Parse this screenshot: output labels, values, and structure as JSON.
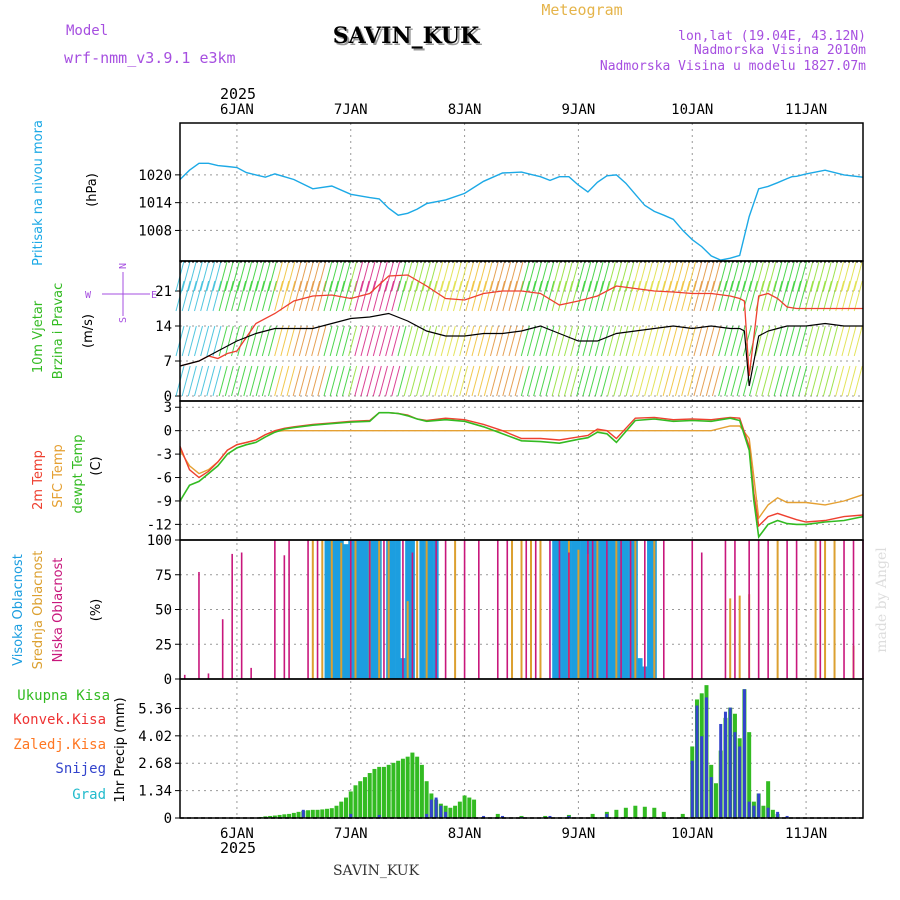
{
  "header": {
    "model_label": "Model",
    "model_name": "wrf-nmm_v3.9.1 e3km",
    "station": "SAVIN_KUK",
    "product": "Meteogram",
    "lonlat": "lon,lat (19.04E, 43.12N)",
    "elevation": "Nadmorska Visina 2010m",
    "model_elevation": "Nadmorska Visina u modelu 1827.07m"
  },
  "footer": {
    "station": "SAVIN_KUK",
    "watermark": "made by Angel"
  },
  "colors": {
    "pressure": "#1ca9e6",
    "temp": "#ee4030",
    "sfc_temp": "#e5a032",
    "dewpt": "#33bb22",
    "cloud_high": "#1c9ee0",
    "cloud_mid": "#dca030",
    "cloud_low": "#c8177c",
    "precip_total": "#33bb22",
    "precip_conv": "#ee3333",
    "precip_frz": "#ff7722",
    "precip_snow": "#3344cc",
    "precip_hail": "#22bbcc",
    "grid": "#999999"
  },
  "chart_data": [
    {
      "id": "dates",
      "type": "table",
      "year": "2025",
      "top_labels": [
        "6JAN",
        "7JAN",
        "8JAN",
        "9JAN",
        "10JAN",
        "11JAN"
      ],
      "bottom_labels": [
        "6JAN",
        "7JAN",
        "8JAN",
        "9JAN",
        "10JAN",
        "11JAN"
      ],
      "x_start_hour": -12,
      "x_end_hour": 132
    },
    {
      "id": "pressure",
      "type": "line",
      "title": "Pritisak na nivou mora",
      "ylabel": "(hPa)",
      "yticks": [
        "1020",
        "1014",
        "1008"
      ],
      "ytick_values": [
        1020,
        1014,
        1008
      ],
      "ylim": [
        1001.4,
        1031.2
      ],
      "x": [
        -12,
        -10,
        -8,
        -6,
        -4,
        -2,
        0,
        2,
        4,
        6,
        8,
        12,
        16,
        20,
        24,
        28,
        30,
        32,
        34,
        36,
        38,
        40,
        44,
        48,
        52,
        56,
        58,
        60,
        62,
        64,
        66,
        68,
        70,
        72,
        74,
        76,
        78,
        80,
        82,
        84,
        86,
        88,
        90,
        92,
        94,
        96,
        98,
        100,
        102,
        104,
        106,
        108,
        110,
        112,
        114,
        116,
        117,
        118,
        120,
        124,
        128,
        132
      ],
      "values": [
        1019.0,
        1021.0,
        1022.5,
        1022.5,
        1022.0,
        1021.8,
        1021.6,
        1020.5,
        1020.0,
        1019.5,
        1020.2,
        1019.0,
        1017.0,
        1017.6,
        1015.8,
        1015.1,
        1014.8,
        1012.8,
        1011.3,
        1011.7,
        1012.6,
        1013.8,
        1014.6,
        1016.0,
        1018.6,
        1020.4,
        1020.5,
        1020.6,
        1020.1,
        1019.6,
        1018.8,
        1019.6,
        1019.6,
        1017.8,
        1016.3,
        1018.4,
        1019.8,
        1020.0,
        1018.2,
        1015.8,
        1013.4,
        1012.1,
        1011.3,
        1010.4,
        1008.0,
        1006.0,
        1004.5,
        1002.5,
        1001.6,
        1002.0,
        1002.6,
        1011.0,
        1017.0,
        1017.5,
        1018.3,
        1019.2,
        1019.6,
        1019.7,
        1020.2,
        1021.0,
        1020.0,
        1019.5
      ]
    },
    {
      "id": "wind",
      "type": "line",
      "title1": "10m Vjetar",
      "title2": "Brzina i Pravac",
      "ylabel": "(m/s)",
      "compass": "N",
      "compass_w": "W",
      "compass_e": "E",
      "compass_s": "S",
      "yticks": [
        "21",
        "14",
        "7",
        "0"
      ],
      "ytick_values": [
        21,
        14,
        7,
        0
      ],
      "ylim": [
        -1,
        27
      ],
      "x": [
        -12,
        -10,
        -8,
        -6,
        -4,
        -2,
        0,
        4,
        8,
        12,
        16,
        20,
        24,
        28,
        32,
        36,
        40,
        44,
        48,
        52,
        56,
        60,
        64,
        68,
        72,
        76,
        80,
        84,
        88,
        92,
        96,
        100,
        104,
        106,
        107,
        108,
        110,
        112,
        114,
        116,
        118,
        120,
        124,
        128,
        132
      ],
      "speed": [
        6,
        6.5,
        7,
        8,
        9,
        10,
        11,
        12.5,
        13.5,
        13.5,
        13.5,
        14.5,
        15.5,
        15.8,
        16.5,
        15,
        13,
        12,
        12,
        12.5,
        12.5,
        13,
        14,
        12.5,
        11,
        11,
        12.5,
        13,
        13.5,
        14,
        13.5,
        14,
        13.5,
        13.5,
        13.0,
        2,
        12,
        13,
        13.5,
        14,
        14,
        14,
        14.5,
        14,
        14
      ],
      "gust": [
        6,
        6.5,
        7,
        8,
        7.5,
        8.5,
        9,
        14.5,
        16.5,
        19,
        20,
        20.2,
        19.5,
        20.5,
        24,
        24.2,
        22,
        19.5,
        19.2,
        20.5,
        21,
        21,
        20.5,
        18.2,
        19,
        20,
        22,
        21.5,
        21,
        20.8,
        20.5,
        20.5,
        20,
        19.5,
        19,
        4,
        20,
        20.5,
        19.5,
        17.8,
        17.5,
        17.5,
        17.5,
        17.5,
        17.5
      ]
    },
    {
      "id": "temperature",
      "type": "line",
      "title1": "2m Temp",
      "title2": "SFC Temp",
      "title3": "dewpt Temp",
      "ylabel": "(C)",
      "yticks": [
        "3",
        "0",
        "-3",
        "-6",
        "-9",
        "-12"
      ],
      "ytick_values": [
        3,
        0,
        -3,
        -6,
        -9,
        -12
      ],
      "ylim": [
        -14,
        3.8
      ],
      "x": [
        -12,
        -10,
        -8,
        -6,
        -4,
        -2,
        0,
        2,
        4,
        6,
        8,
        10,
        12,
        16,
        20,
        24,
        28,
        30,
        32,
        34,
        36,
        38,
        40,
        44,
        48,
        52,
        56,
        60,
        64,
        68,
        72,
        74,
        76,
        78,
        80,
        84,
        88,
        92,
        96,
        100,
        104,
        106,
        108,
        109,
        110,
        112,
        114,
        116,
        118,
        120,
        124,
        128,
        132
      ],
      "temp2m": [
        -2,
        -5,
        -6,
        -5.2,
        -4,
        -2.5,
        -1.8,
        -1.5,
        -1.2,
        -0.5,
        0,
        0.3,
        0.5,
        0.8,
        1.0,
        1.2,
        1.3,
        2.3,
        2.3,
        2.2,
        2.0,
        1.5,
        1.3,
        1.6,
        1.4,
        0.8,
        0,
        -1,
        -1.0,
        -1.2,
        -0.8,
        -0.6,
        0.2,
        0.0,
        -1.0,
        1.6,
        1.7,
        1.4,
        1.5,
        1.4,
        1.7,
        1.6,
        -2,
        -8,
        -12.2,
        -11,
        -10.6,
        -11,
        -11.4,
        -11.7,
        -11.5,
        -11,
        -10.8
      ],
      "sfc": [
        -2.5,
        -4.5,
        -5.5,
        -5,
        -4,
        -2.5,
        -1.8,
        -1.5,
        -1.2,
        -0.5,
        -0.1,
        0,
        0,
        0,
        0,
        0,
        0,
        0,
        0,
        0,
        0,
        0,
        0,
        0,
        0,
        0,
        0,
        0,
        0,
        0,
        0,
        0,
        0,
        0,
        0,
        0,
        0,
        0,
        0,
        0,
        0.6,
        0.6,
        -1,
        -6,
        -11.2,
        -9.5,
        -8.6,
        -9.2,
        -9.2,
        -9.2,
        -9.5,
        -9,
        -8.2
      ],
      "dewpt": [
        -9,
        -7,
        -6.5,
        -5.5,
        -4.5,
        -3,
        -2.2,
        -1.8,
        -1.5,
        -0.8,
        -0.2,
        0.2,
        0.4,
        0.7,
        0.9,
        1.1,
        1.2,
        2.3,
        2.3,
        2.2,
        1.9,
        1.5,
        1.2,
        1.4,
        1.2,
        0.5,
        -0.4,
        -1.3,
        -1.4,
        -1.6,
        -1.1,
        -0.9,
        -0.2,
        -0.4,
        -1.5,
        1.3,
        1.5,
        1.2,
        1.3,
        1.2,
        1.6,
        1.3,
        -2.5,
        -9,
        -13.6,
        -12,
        -11.5,
        -11.9,
        -12.0,
        -12.0,
        -11.7,
        -11.5,
        -11.0
      ]
    },
    {
      "id": "clouds",
      "type": "bar",
      "title1": "Visoka Oblacnost",
      "title2": "Srednja Oblacnost",
      "title3": "Niska Oblacnost",
      "ylabel": "(%)",
      "yticks": [
        "100",
        "75",
        "50",
        "25",
        "0"
      ],
      "ytick_values": [
        100,
        75,
        50,
        25,
        0
      ],
      "ylim": [
        0,
        100
      ],
      "low_x": [
        -11,
        -8,
        -6,
        -3,
        -1,
        1,
        3,
        8,
        10,
        11,
        15,
        17,
        24,
        28,
        31,
        35,
        37,
        42,
        44,
        48,
        51,
        55,
        57,
        61,
        63,
        66,
        68,
        70,
        74,
        75,
        78,
        81,
        83,
        86,
        90,
        96,
        98,
        103,
        105,
        108,
        110,
        112,
        116,
        118,
        123,
        128,
        130,
        132
      ],
      "low_v": [
        3,
        77,
        4,
        43,
        90,
        91,
        8,
        100,
        89,
        100,
        100,
        100,
        100,
        100,
        100,
        100,
        91,
        100,
        100,
        100,
        100,
        100,
        100,
        100,
        100,
        100,
        100,
        91,
        100,
        100,
        100,
        100,
        100,
        100,
        100,
        100,
        91,
        100,
        100,
        100,
        100,
        100,
        100,
        100,
        100,
        100,
        100,
        100
      ],
      "mid_x": [
        16,
        18,
        20,
        22,
        25,
        28,
        30,
        32,
        36,
        38,
        40,
        46,
        58,
        60,
        62,
        64,
        70,
        72,
        74,
        76,
        80,
        84,
        88,
        104,
        106,
        108,
        114,
        122,
        124,
        126,
        130
      ],
      "mid_v": [
        100,
        100,
        100,
        98,
        100,
        100,
        100,
        100,
        56,
        100,
        100,
        100,
        100,
        100,
        100,
        100,
        100,
        93,
        90,
        100,
        100,
        100,
        100,
        58,
        60,
        61,
        100,
        100,
        100,
        100,
        24
      ],
      "high_x": [
        19,
        20,
        21,
        22,
        23,
        24,
        25,
        26,
        27,
        28,
        29,
        30,
        32,
        33,
        34,
        35,
        36,
        37,
        39,
        40,
        41,
        42,
        67,
        68,
        69,
        70,
        71,
        72,
        73,
        74,
        75,
        76,
        77,
        78,
        79,
        80,
        81,
        82,
        83,
        84,
        85,
        86,
        87,
        88
      ],
      "high_v": [
        100,
        100,
        100,
        100,
        97,
        100,
        100,
        100,
        100,
        100,
        100,
        100,
        100,
        100,
        100,
        15,
        100,
        100,
        100,
        100,
        100,
        100,
        100,
        100,
        100,
        100,
        100,
        100,
        100,
        100,
        100,
        100,
        100,
        100,
        100,
        100,
        100,
        100,
        100,
        100,
        15,
        9,
        100,
        100
      ]
    },
    {
      "id": "precip",
      "type": "bar",
      "title1": "Ukupna Kisa",
      "title2": "Konvek.Kisa",
      "title3": "Zaledj.Kisa",
      "title4": "Snijeg",
      "title5": "Grad",
      "ylabel": "1hr Precip (mm)",
      "yticks": [
        "5.36",
        "4.02",
        "2.68",
        "1.34",
        "0"
      ],
      "ytick_values": [
        5.36,
        4.02,
        2.68,
        1.34,
        0
      ],
      "ylim": [
        0,
        6.8
      ],
      "total_x": [
        5,
        6,
        7,
        8,
        9,
        10,
        11,
        12,
        13,
        14,
        15,
        16,
        17,
        18,
        19,
        20,
        21,
        22,
        23,
        24,
        25,
        26,
        27,
        28,
        29,
        30,
        31,
        32,
        33,
        34,
        35,
        36,
        37,
        38,
        39,
        40,
        41,
        42,
        43,
        44,
        45,
        46,
        47,
        48,
        49,
        50,
        55,
        60,
        65,
        70,
        75,
        78,
        80,
        82,
        84,
        86,
        88,
        90,
        94,
        96,
        97,
        98,
        99,
        100,
        101,
        102,
        103,
        104,
        105,
        106,
        107,
        108,
        109,
        110,
        111,
        112,
        113,
        114
      ],
      "total_v": [
        0.05,
        0.08,
        0.1,
        0.12,
        0.15,
        0.18,
        0.2,
        0.25,
        0.3,
        0.35,
        0.38,
        0.4,
        0.4,
        0.42,
        0.45,
        0.48,
        0.6,
        0.8,
        1.0,
        1.3,
        1.6,
        1.8,
        2.0,
        2.2,
        2.4,
        2.5,
        2.5,
        2.6,
        2.7,
        2.8,
        2.9,
        3.0,
        3.2,
        3.0,
        2.6,
        1.8,
        1.2,
        0.9,
        0.7,
        0.6,
        0.5,
        0.6,
        0.8,
        1.1,
        1.0,
        0.9,
        0.2,
        0.1,
        0.1,
        0.15,
        0.2,
        0.3,
        0.4,
        0.5,
        0.6,
        0.55,
        0.5,
        0.3,
        0.2,
        3.5,
        5.8,
        6.1,
        6.5,
        2.6,
        1.7,
        3.3,
        4.9,
        5.4,
        5.1,
        3.9,
        6.3,
        4.2,
        0.8,
        1.2,
        0.6,
        1.8,
        0.4,
        0.2
      ],
      "snow_x": [
        0,
        4,
        14,
        24,
        30,
        40,
        41,
        42,
        43,
        44,
        52,
        56,
        60,
        66,
        70,
        78,
        96,
        97,
        98,
        99,
        100,
        102,
        103,
        104,
        105,
        106,
        107,
        108,
        109,
        110,
        112,
        114,
        116
      ],
      "snow_v": [
        0.02,
        0.02,
        0.4,
        0.2,
        0.15,
        0.2,
        0.9,
        1.0,
        0.6,
        0.3,
        0.1,
        0.1,
        0.05,
        0.1,
        0.1,
        0.2,
        2.8,
        5.5,
        4.0,
        5.9,
        2.0,
        4.6,
        5.2,
        5.4,
        4.2,
        3.5,
        6.3,
        0.8,
        0.6,
        1.2,
        0.5,
        0.3,
        0.1
      ]
    }
  ]
}
